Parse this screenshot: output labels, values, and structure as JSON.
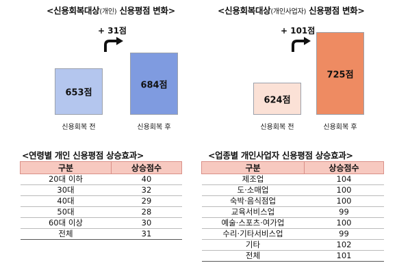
{
  "chart_data": [
    {
      "type": "bar",
      "title_main": "<신용회복대상",
      "title_sub": "(개인)",
      "title_end": " 신용평점 변화>",
      "categories": [
        "신용회복 전",
        "신용회복 후"
      ],
      "values": [
        653,
        684
      ],
      "value_labels": [
        "653점",
        "684점"
      ],
      "delta_label": "+ 31점",
      "colors": [
        "#b4c6ee",
        "#7f9be0"
      ],
      "ylim": [
        560,
        730
      ]
    },
    {
      "type": "bar",
      "title_main": "<신용회복대상",
      "title_sub": "(개인사업자)",
      "title_end": " 신용평점 변화>",
      "categories": [
        "신용회복 전",
        "신용회복 후"
      ],
      "values": [
        624,
        725
      ],
      "value_labels": [
        "624점",
        "725점"
      ],
      "delta_label": "+ 101점",
      "colors": [
        "#fbe1d6",
        "#ee8b62"
      ],
      "ylim": [
        560,
        730
      ]
    },
    {
      "type": "table",
      "title": "<연령별 개인 신용평점 상승효과>",
      "columns": [
        "구분",
        "상승점수"
      ],
      "rows": [
        [
          "20대 이하",
          "40"
        ],
        [
          "30대",
          "32"
        ],
        [
          "40대",
          "29"
        ],
        [
          "50대",
          "28"
        ],
        [
          "60대 이상",
          "30"
        ],
        [
          "전체",
          "31"
        ]
      ]
    },
    {
      "type": "table",
      "title": "<업종별 개인사업자 신용평점 상승효과>",
      "columns": [
        "구분",
        "상승점수"
      ],
      "rows": [
        [
          "제조업",
          "104"
        ],
        [
          "도·소매업",
          "100"
        ],
        [
          "숙박·음식점업",
          "100"
        ],
        [
          "교육서비스업",
          "99"
        ],
        [
          "예술·스포츠·여가업",
          "100"
        ],
        [
          "수리·기타서비스업",
          "99"
        ],
        [
          "기타",
          "102"
        ],
        [
          "전체",
          "101"
        ]
      ]
    }
  ]
}
